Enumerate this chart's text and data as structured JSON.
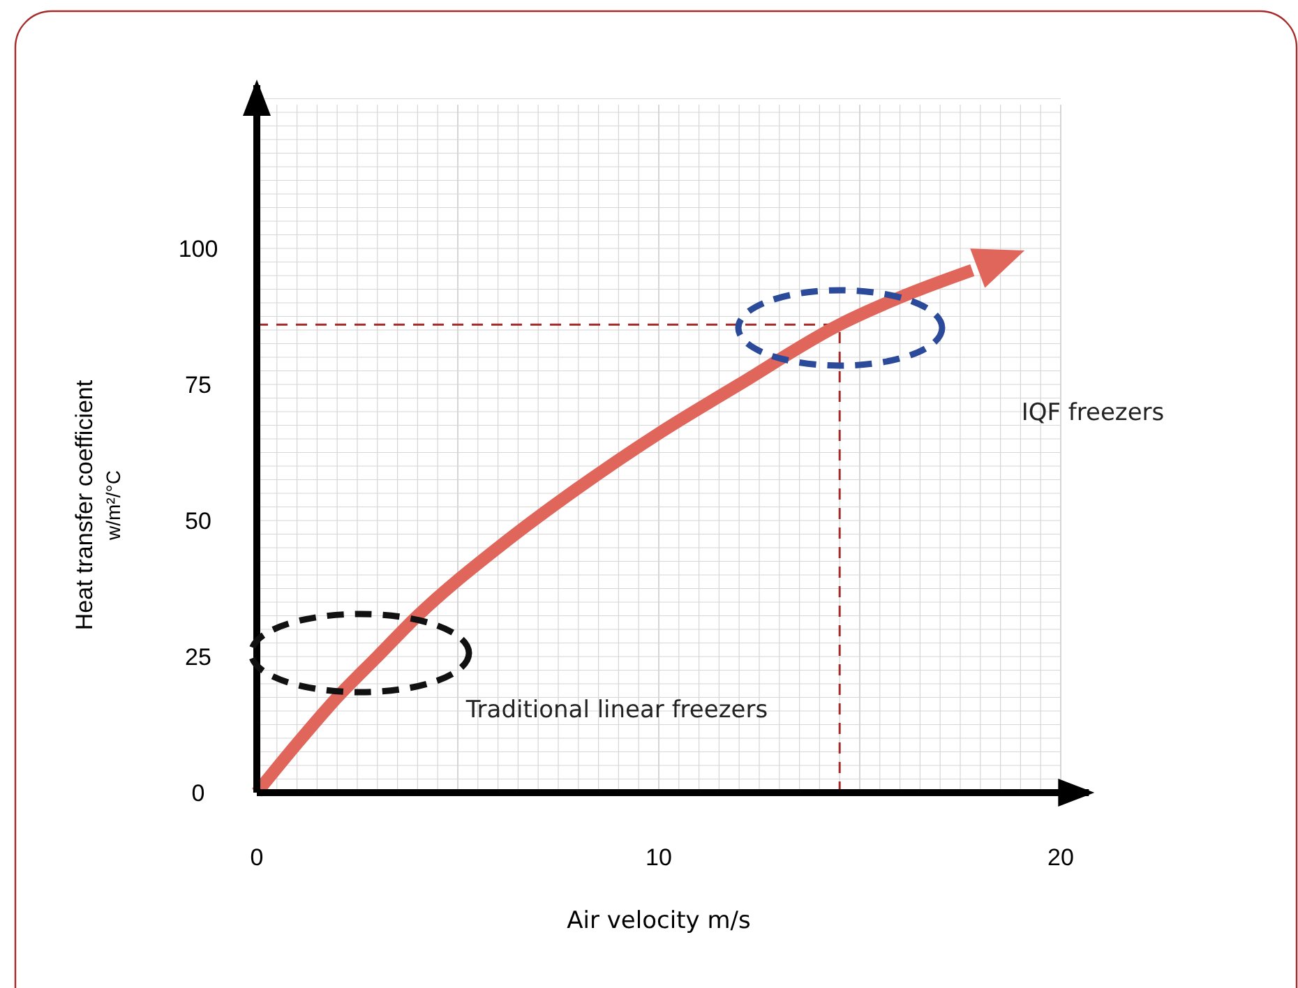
{
  "chart_data": {
    "type": "line",
    "xlabel": "Air velocity m/s",
    "ylabel": "Heat transfer coefficient\nw/m²/°C",
    "xlim": [
      0,
      20.7
    ],
    "ylim": [
      0,
      130
    ],
    "xticks": [
      0,
      10,
      20
    ],
    "yticks": [
      0,
      25,
      50,
      75,
      100
    ],
    "grid": true,
    "marker": "none",
    "line_style": "solid",
    "series": [
      {
        "color": "#e0655a",
        "x": [
          0,
          1,
          2,
          3,
          4,
          6,
          8,
          10,
          12,
          14.5,
          16,
          17.8
        ],
        "values": [
          0,
          9,
          17.5,
          25,
          32.5,
          45,
          56,
          66,
          75,
          86,
          91,
          96
        ]
      }
    ],
    "ref_lines": [
      {
        "axis": "x",
        "value": 14.5,
        "color": "#a52a2a",
        "line_style": "dashed"
      },
      {
        "axis": "y",
        "value": 86,
        "color": "#a52a2a",
        "line_style": "dashed"
      }
    ],
    "annotations": [
      "Traditional linear freezers",
      "IQF freezers"
    ]
  }
}
